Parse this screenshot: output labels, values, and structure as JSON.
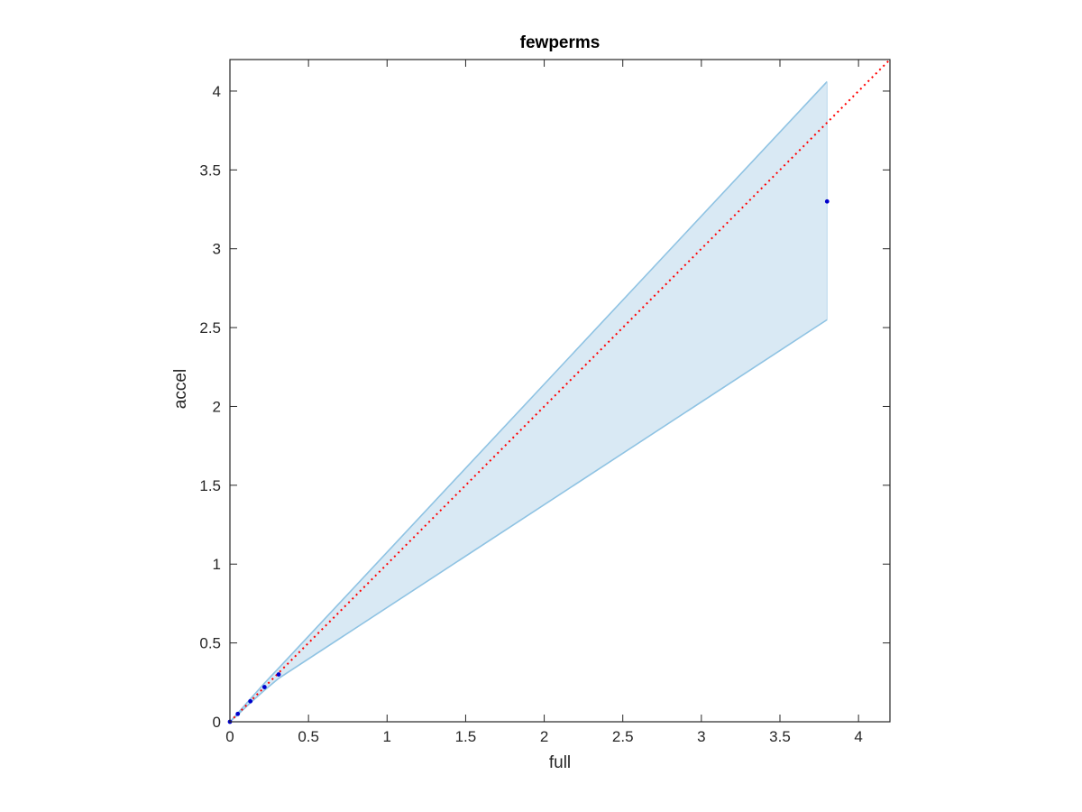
{
  "chart_data": {
    "type": "scatter",
    "title": "fewperms",
    "xlabel": "full",
    "ylabel": "accel",
    "xlim": [
      0,
      4.2
    ],
    "ylim": [
      0,
      4.2
    ],
    "xticks": [
      0,
      0.5,
      1,
      1.5,
      2,
      2.5,
      3,
      3.5,
      4
    ],
    "yticks": [
      0,
      0.5,
      1,
      1.5,
      2,
      2.5,
      3,
      3.5,
      4
    ],
    "xtick_labels": [
      "0",
      "0.5",
      "1",
      "1.5",
      "2",
      "2.5",
      "3",
      "3.5",
      "4"
    ],
    "ytick_labels": [
      "0",
      "0.5",
      "1",
      "1.5",
      "2",
      "2.5",
      "3",
      "3.5",
      "4"
    ],
    "grid": false,
    "band": {
      "x": [
        0,
        0.05,
        0.13,
        0.22,
        0.31,
        3.8
      ],
      "upper": [
        0,
        0.055,
        0.145,
        0.245,
        0.34,
        4.06
      ],
      "lower": [
        0,
        0.045,
        0.12,
        0.2,
        0.275,
        2.55
      ],
      "fill_color": "#d9e9f4",
      "line_color": "#8fc3e3"
    },
    "series": [
      {
        "x": [
          0,
          0.05,
          0.13,
          0.22,
          0.31,
          3.8
        ],
        "y": [
          0,
          0.05,
          0.13,
          0.22,
          0.3,
          3.3
        ],
        "color": "#0000cc"
      }
    ],
    "reference_line": {
      "x": [
        0,
        4.2
      ],
      "y": [
        0,
        4.2
      ],
      "color": "#ff0000",
      "style": "dotted"
    }
  }
}
